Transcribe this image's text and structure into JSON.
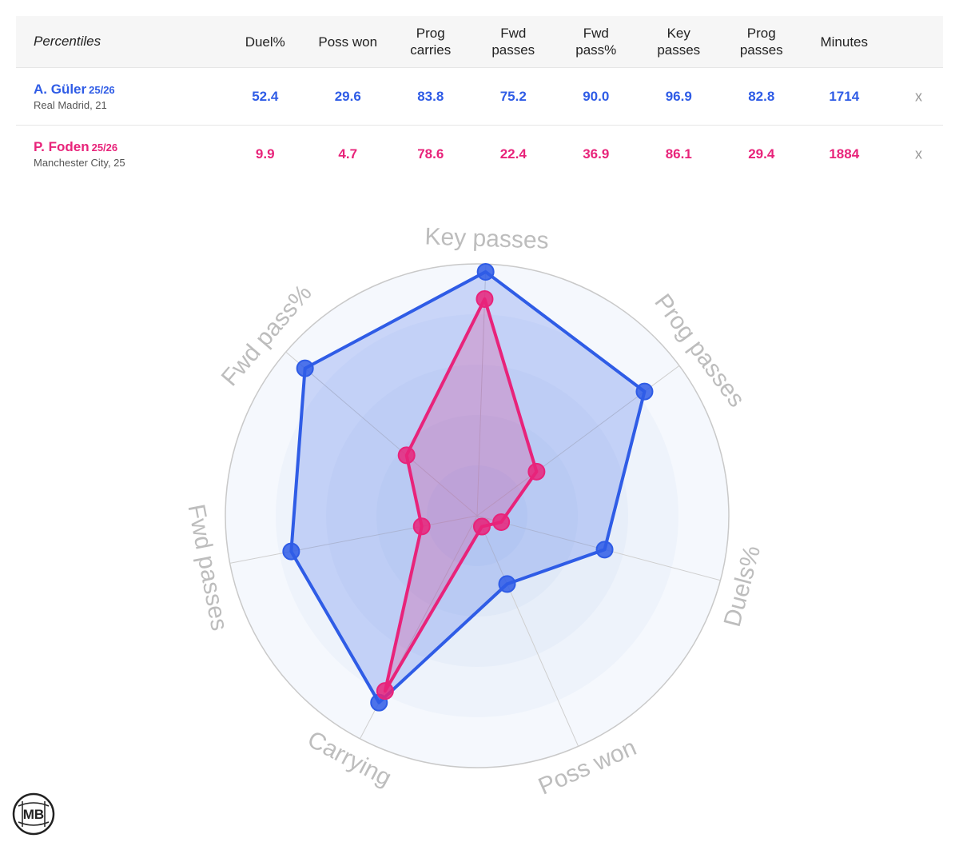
{
  "table": {
    "header_label": "Percentiles",
    "columns": [
      {
        "line1": "Duel%",
        "line2": ""
      },
      {
        "line1": "Poss won",
        "line2": ""
      },
      {
        "line1": "Prog",
        "line2": "carries"
      },
      {
        "line1": "Fwd",
        "line2": "passes"
      },
      {
        "line1": "Fwd",
        "line2": "pass%"
      },
      {
        "line1": "Key",
        "line2": "passes"
      },
      {
        "line1": "Prog",
        "line2": "passes"
      },
      {
        "line1": "Minutes",
        "line2": ""
      }
    ],
    "players": [
      {
        "name": "A. Güler",
        "season": "25/26",
        "meta": "Real Madrid, 21",
        "values": [
          "52.4",
          "29.6",
          "83.8",
          "75.2",
          "90.0",
          "96.9",
          "82.8",
          "1714"
        ],
        "remove": "x"
      },
      {
        "name": "P. Foden",
        "season": "25/26",
        "meta": "Manchester City, 25",
        "values": [
          "9.9",
          "4.7",
          "78.6",
          "22.4",
          "36.9",
          "86.1",
          "29.4",
          "1884"
        ],
        "remove": "x"
      }
    ]
  },
  "colors": {
    "guler": "#2f5ce6",
    "foden": "#e8237a",
    "axis_label": "#bdbdbd",
    "ring": "#c9c9c9"
  },
  "chart_data": {
    "type": "radar",
    "axes": [
      "Key passes",
      "Prog passes",
      "Duels%",
      "Poss won",
      "Carrying",
      "Fwd passes",
      "Fwd pass%"
    ],
    "range": [
      0,
      100
    ],
    "series": [
      {
        "name": "A. Güler",
        "values": [
          96.9,
          82.8,
          52.4,
          29.6,
          83.8,
          75.2,
          90.0
        ]
      },
      {
        "name": "P. Foden",
        "values": [
          86.1,
          29.4,
          9.9,
          4.7,
          78.6,
          22.4,
          36.9
        ]
      }
    ]
  },
  "logo": {
    "text": "MB"
  }
}
